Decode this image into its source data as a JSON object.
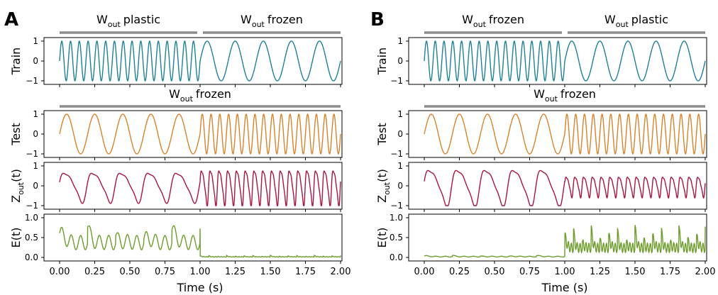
{
  "chart_data": [
    {
      "panel": "A",
      "type": "line",
      "xlabel": "Time (s)",
      "xlim": [
        0.0,
        2.0
      ],
      "xticks": [
        "0.00",
        "0.25",
        "0.50",
        "0.75",
        "1.00",
        "1.25",
        "1.50",
        "1.75",
        "2.00"
      ],
      "phases_train": [
        {
          "label_main": "W",
          "label_sub": "out",
          "label_rest": "plastic",
          "x_start": 0.0,
          "x_end": 0.98
        },
        {
          "label_main": "W",
          "label_sub": "out",
          "label_rest": "frozen",
          "x_start": 1.02,
          "x_end": 2.0
        }
      ],
      "phases_test": [
        {
          "label_main": "W",
          "label_sub": "out",
          "label_rest": "frozen",
          "x_start": 0.0,
          "x_end": 2.0
        }
      ],
      "subplots": [
        {
          "name": "Train",
          "ylabel": "Train",
          "ylabel_main": "",
          "ylabel_sub": "",
          "ylabel_rest": "",
          "ylim": [
            -1,
            1
          ],
          "yticks": [
            "1",
            "0",
            "−1"
          ],
          "yticks_values": [
            1,
            0,
            -1
          ],
          "color": "#1f8196",
          "signal": {
            "kind": "sine",
            "segments": [
              {
                "x0": 0.0,
                "x1": 1.0,
                "freq_hz": 16
              },
              {
                "x0": 1.0,
                "x1": 2.0,
                "freq_hz": 5
              }
            ]
          }
        },
        {
          "name": "Test",
          "ylabel": "Test",
          "ylabel_main": "",
          "ylabel_sub": "",
          "ylabel_rest": "",
          "ylim": [
            -1,
            1
          ],
          "yticks": [
            "1",
            "0",
            "−1"
          ],
          "yticks_values": [
            1,
            0,
            -1
          ],
          "color": "#d9832b",
          "signal": {
            "kind": "sine",
            "segments": [
              {
                "x0": 0.0,
                "x1": 1.0,
                "freq_hz": 5
              },
              {
                "x0": 1.0,
                "x1": 2.0,
                "freq_hz": 16
              }
            ]
          }
        },
        {
          "name": "Zout",
          "ylabel": "",
          "ylabel_main": "Z",
          "ylabel_sub": "out",
          "ylabel_rest": "(t)",
          "ylim": [
            -1,
            1
          ],
          "yticks": [
            "1",
            "0",
            "−1"
          ],
          "yticks_values": [
            1,
            0,
            -1
          ],
          "color": "#a8163f",
          "signal": {
            "kind": "distorted",
            "segments": [
              {
                "x0": 0.0,
                "x1": 1.0,
                "freq_hz": 5,
                "amplitude": 0.8
              },
              {
                "x0": 1.0,
                "x1": 2.0,
                "freq_hz": 16,
                "amplitude": 0.95
              }
            ]
          }
        },
        {
          "name": "Error",
          "ylabel": "",
          "ylabel_main": "E(t)",
          "ylabel_sub": "",
          "ylabel_rest": "",
          "ylim": [
            0,
            1
          ],
          "yticks": [
            "1.0",
            "0.5",
            "0.0"
          ],
          "yticks_values": [
            1.0,
            0.5,
            0.0
          ],
          "color": "#6e9d2c",
          "signal": {
            "kind": "error",
            "segments": [
              {
                "x0": 0.0,
                "x1": 1.0,
                "freq_hz": 5,
                "level": 0.55,
                "spike": 0.95
              },
              {
                "x0": 1.0,
                "x1": 2.0,
                "freq_hz": 16,
                "level": 0.02,
                "spike": 0.06
              }
            ]
          }
        }
      ]
    },
    {
      "panel": "B",
      "type": "line",
      "xlabel": "Time (s)",
      "xlim": [
        0.0,
        2.0
      ],
      "xticks": [
        "0.00",
        "0.25",
        "0.50",
        "0.75",
        "1.00",
        "1.25",
        "1.50",
        "1.75",
        "2.00"
      ],
      "phases_train": [
        {
          "label_main": "W",
          "label_sub": "out",
          "label_rest": "frozen",
          "x_start": 0.0,
          "x_end": 0.98
        },
        {
          "label_main": "W",
          "label_sub": "out",
          "label_rest": "plastic",
          "x_start": 1.02,
          "x_end": 2.0
        }
      ],
      "phases_test": [
        {
          "label_main": "W",
          "label_sub": "out",
          "label_rest": "frozen",
          "x_start": 0.0,
          "x_end": 2.0
        }
      ],
      "subplots": [
        {
          "name": "Train",
          "ylabel": "Train",
          "ylabel_main": "",
          "ylabel_sub": "",
          "ylabel_rest": "",
          "ylim": [
            -1,
            1
          ],
          "yticks": [
            "1",
            "0",
            "−1"
          ],
          "yticks_values": [
            1,
            0,
            -1
          ],
          "color": "#1f8196",
          "signal": {
            "kind": "sine",
            "segments": [
              {
                "x0": 0.0,
                "x1": 1.0,
                "freq_hz": 16
              },
              {
                "x0": 1.0,
                "x1": 2.0,
                "freq_hz": 5
              }
            ]
          }
        },
        {
          "name": "Test",
          "ylabel": "Test",
          "ylabel_main": "",
          "ylabel_sub": "",
          "ylabel_rest": "",
          "ylim": [
            -1,
            1
          ],
          "yticks": [
            "1",
            "0",
            "−1"
          ],
          "yticks_values": [
            1,
            0,
            -1
          ],
          "color": "#d9832b",
          "signal": {
            "kind": "sine",
            "segments": [
              {
                "x0": 0.0,
                "x1": 1.0,
                "freq_hz": 5
              },
              {
                "x0": 1.0,
                "x1": 2.0,
                "freq_hz": 16
              }
            ]
          }
        },
        {
          "name": "Zout",
          "ylabel": "",
          "ylabel_main": "Z",
          "ylabel_sub": "out",
          "ylabel_rest": "(t)",
          "ylim": [
            -1,
            1
          ],
          "yticks": [
            "1",
            "0",
            "−1"
          ],
          "yticks_values": [
            1,
            0,
            -1
          ],
          "color": "#a8163f",
          "signal": {
            "kind": "distorted",
            "segments": [
              {
                "x0": 0.0,
                "x1": 1.0,
                "freq_hz": 5,
                "amplitude": 0.98
              },
              {
                "x0": 1.0,
                "x1": 2.0,
                "freq_hz": 16,
                "amplitude": 0.55
              }
            ]
          }
        },
        {
          "name": "Error",
          "ylabel": "",
          "ylabel_main": "E(t)",
          "ylabel_sub": "",
          "ylabel_rest": "",
          "ylim": [
            0,
            1
          ],
          "yticks": [
            "1.0",
            "0.5",
            "0.0"
          ],
          "yticks_values": [
            1.0,
            0.5,
            0.0
          ],
          "color": "#6e9d2c",
          "signal": {
            "kind": "error",
            "segments": [
              {
                "x0": 0.0,
                "x1": 1.0,
                "freq_hz": 5,
                "level": 0.03,
                "spike": 0.06
              },
              {
                "x0": 1.0,
                "x1": 2.0,
                "freq_hz": 16,
                "level": 0.35,
                "spike": 0.95
              }
            ]
          }
        }
      ]
    }
  ]
}
